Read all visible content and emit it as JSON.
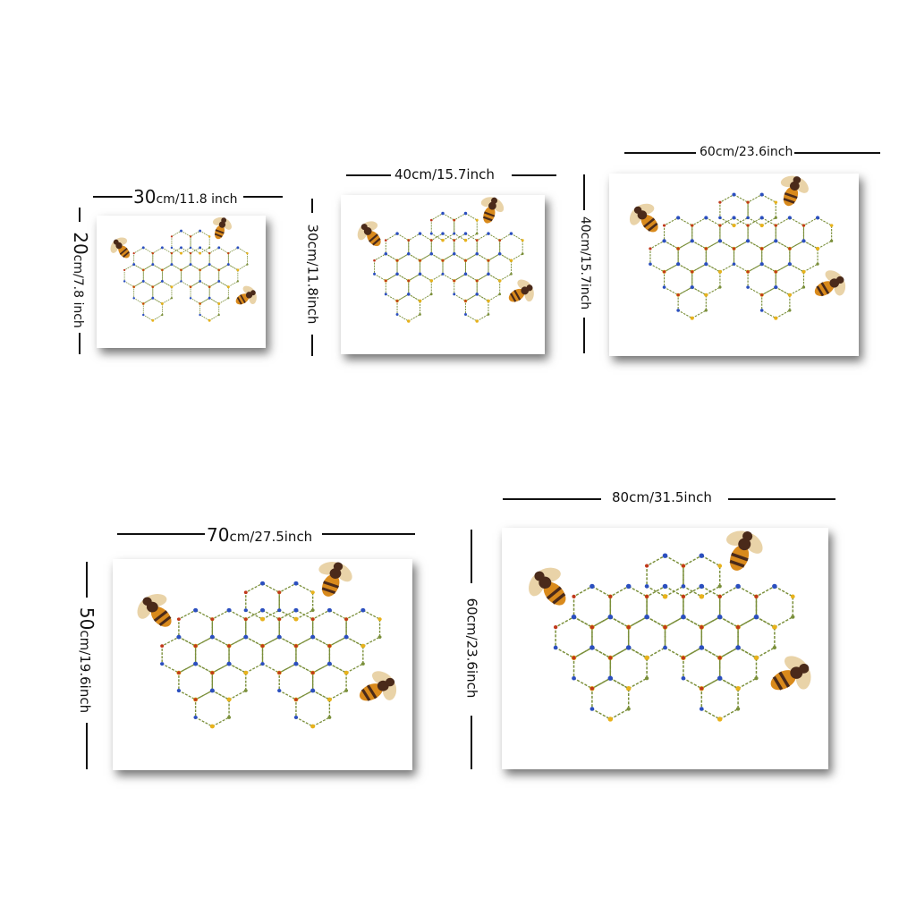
{
  "products": [
    {
      "width_label_main": "30",
      "width_label_rest": "cm/11.8 inch",
      "height_label": "20cm/7.8 inch",
      "height_main": "20",
      "height_rest": "cm/7.8 inch"
    },
    {
      "width_label": "40cm/15.7inch",
      "height_label": "30cm/11.8inch"
    },
    {
      "width_label": "60cm/23.6inch",
      "height_label": "40cm/15.7inch"
    },
    {
      "width_label_main": "70",
      "width_label_rest": "cm/27.5inch",
      "height_main": "50",
      "height_rest": "cm/19.6inch"
    },
    {
      "width_label": "80cm/31.5inch",
      "height_label": "60cm/23.6inch"
    }
  ],
  "artwork": {
    "subject": "honeycomb of flowers with bees",
    "colors": {
      "stem": "#7a8f3a",
      "flower_blue": "#2b4fbf",
      "flower_yellow": "#e8b21c",
      "flower_red": "#c0391b",
      "bee_body": "#4a2a1a",
      "bee_stripe": "#d98a1c",
      "bee_wing": "#e9d3a8"
    }
  }
}
